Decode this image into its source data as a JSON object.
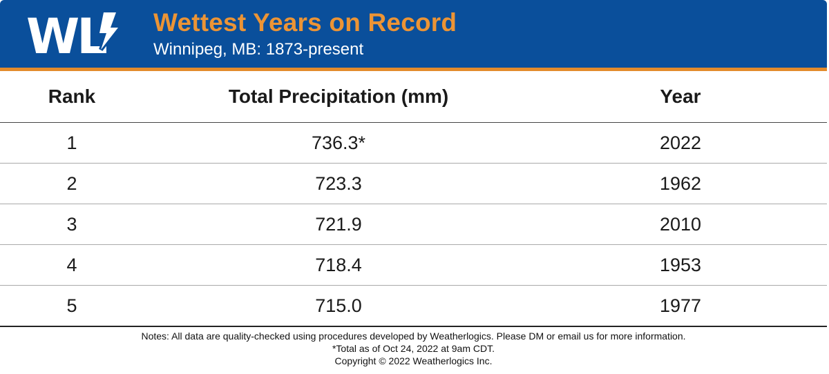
{
  "header": {
    "logo_text": "WL",
    "title": "Wettest Years on Record",
    "subtitle": "Winnipeg, MB: 1873-present"
  },
  "colors": {
    "header_background": "#0a4f9b",
    "accent_orange": "#e38b2c",
    "title_orange": "#ec9435"
  },
  "chart_data": {
    "type": "table",
    "title": "Wettest Years on Record",
    "subtitle": "Winnipeg, MB: 1873-present",
    "columns": [
      "Rank",
      "Total Precipitation (mm)",
      "Year"
    ],
    "rows": [
      {
        "rank": "1",
        "precip": "736.3*",
        "year": "2022"
      },
      {
        "rank": "2",
        "precip": "723.3",
        "year": "1962"
      },
      {
        "rank": "3",
        "precip": "721.9",
        "year": "2010"
      },
      {
        "rank": "4",
        "precip": "718.4",
        "year": "1953"
      },
      {
        "rank": "5",
        "precip": "715.0",
        "year": "1977"
      }
    ]
  },
  "notes": [
    "Notes: All data are quality-checked using procedures developed by Weatherlogics. Please DM or email us for more information.",
    "*Total as of Oct 24, 2022 at 9am CDT.",
    "Copyright © 2022 Weatherlogics Inc."
  ]
}
